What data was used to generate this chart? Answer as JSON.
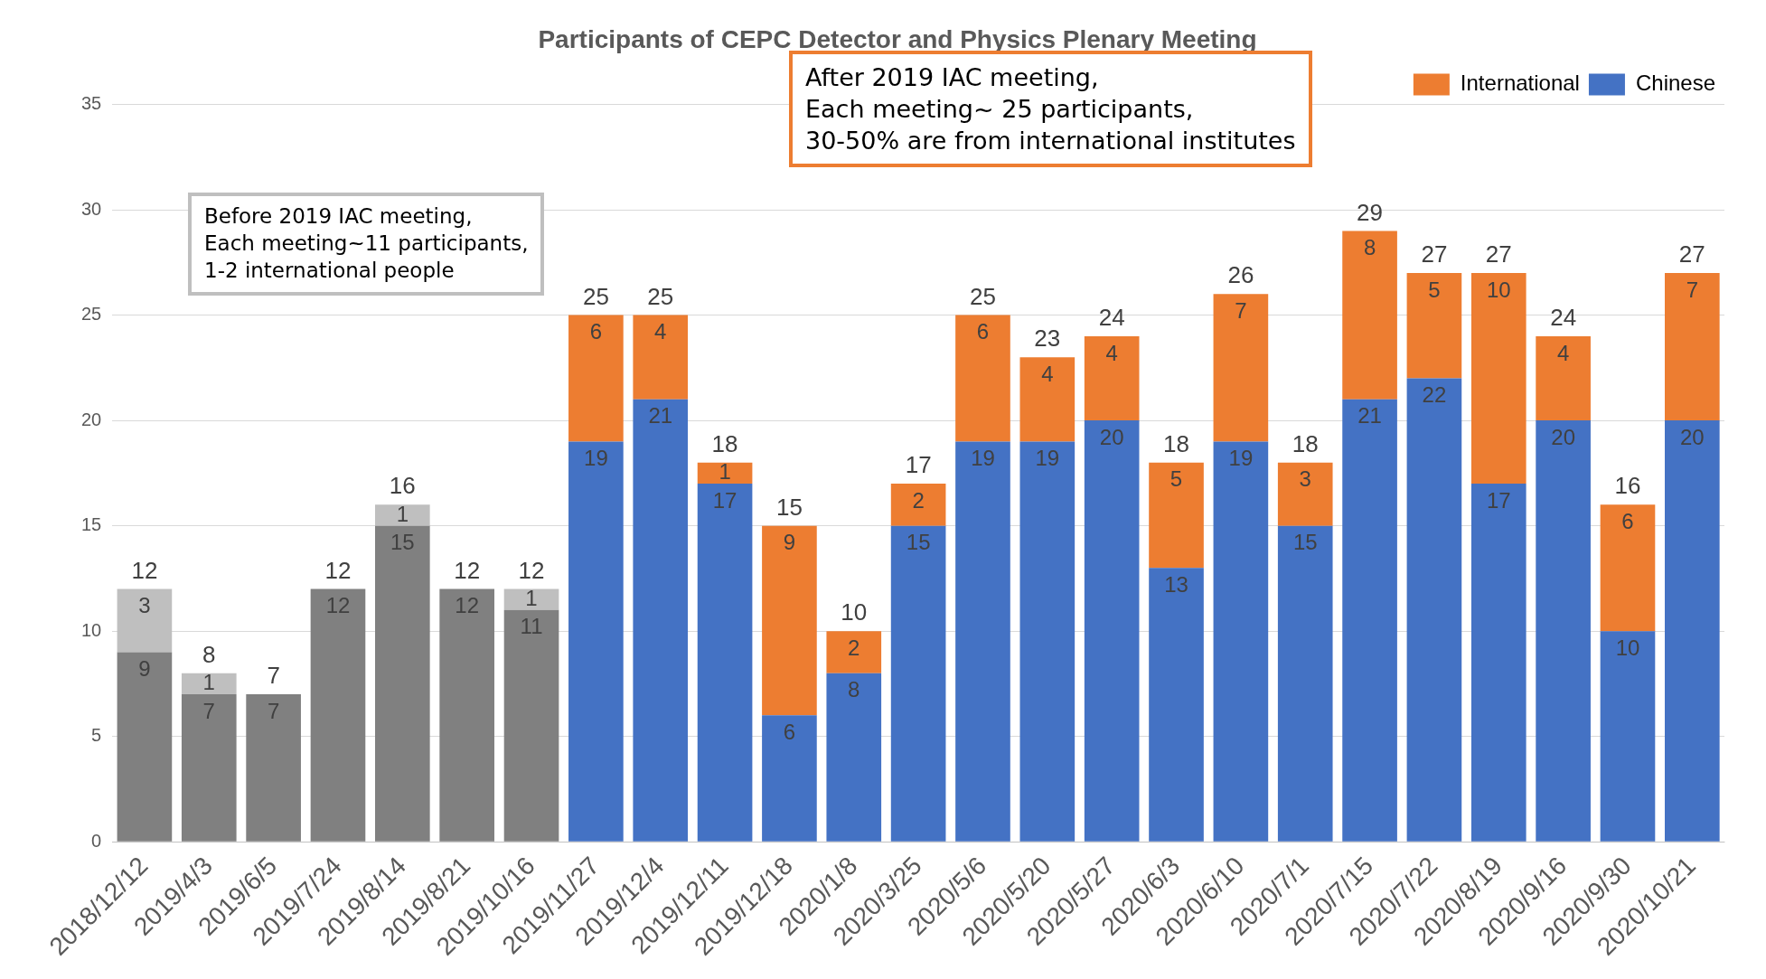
{
  "chart_data": {
    "type": "bar",
    "title": "Participants of CEPC Detector and Physics Plenary Meeting",
    "stacked": true,
    "categories": [
      "2018/12/12",
      "2019/4/3",
      "2019/6/5",
      "2019/7/24",
      "2019/8/14",
      "2019/8/21",
      "2019/10/16",
      "2019/11/27",
      "2019/12/4",
      "2019/12/11",
      "2019/12/18",
      "2020/1/8",
      "2020/3/25",
      "2020/5/6",
      "2020/5/20",
      "2020/5/27",
      "2020/6/3",
      "2020/6/10",
      "2020/7/1",
      "2020/7/15",
      "2020/7/22",
      "2020/8/19",
      "2020/9/16",
      "2020/9/30",
      "2020/10/21"
    ],
    "series": [
      {
        "name": "Chinese",
        "color": "#4472c4",
        "colors": [
          "#808080",
          "#808080",
          "#808080",
          "#808080",
          "#808080",
          "#808080",
          "#808080",
          "#4472c4",
          "#4472c4",
          "#4472c4",
          "#4472c4",
          "#4472c4",
          "#4472c4",
          "#4472c4",
          "#4472c4",
          "#4472c4",
          "#4472c4",
          "#4472c4",
          "#4472c4",
          "#4472c4",
          "#4472c4",
          "#4472c4",
          "#4472c4",
          "#4472c4",
          "#4472c4"
        ],
        "values": [
          9,
          7,
          7,
          12,
          15,
          12,
          11,
          19,
          21,
          17,
          6,
          8,
          15,
          19,
          19,
          20,
          13,
          19,
          15,
          21,
          22,
          17,
          20,
          10,
          20
        ]
      },
      {
        "name": "International",
        "color": "#ed7d31",
        "colors": [
          "#bfbfbf",
          "#bfbfbf",
          "#bfbfbf",
          "#bfbfbf",
          "#bfbfbf",
          "#bfbfbf",
          "#bfbfbf",
          "#ed7d31",
          "#ed7d31",
          "#ed7d31",
          "#ed7d31",
          "#ed7d31",
          "#ed7d31",
          "#ed7d31",
          "#ed7d31",
          "#ed7d31",
          "#ed7d31",
          "#ed7d31",
          "#ed7d31",
          "#ed7d31",
          "#ed7d31",
          "#ed7d31",
          "#ed7d31",
          "#ed7d31",
          "#ed7d31"
        ],
        "values": [
          3,
          1,
          null,
          null,
          1,
          null,
          1,
          6,
          4,
          1,
          9,
          2,
          2,
          6,
          4,
          4,
          5,
          7,
          3,
          8,
          5,
          10,
          4,
          6,
          7
        ]
      }
    ],
    "totals": [
      "12",
      "8",
      "7",
      "12",
      "16",
      "12",
      "12",
      "25",
      "25",
      "18",
      "15",
      "10",
      "17",
      "25",
      "23",
      "24",
      "18",
      "26",
      "18",
      "29",
      "27",
      "27",
      "24",
      "16",
      "27"
    ],
    "data_labels": true,
    "ylim": [
      0,
      35
    ],
    "yticks": [
      0,
      5,
      10,
      15,
      20,
      25,
      30,
      35
    ],
    "grid": "y",
    "legend": "top right",
    "annotations": [
      "Before 2019 IAC meeting,\nEach meeting~11 participants,\n1-2 international people",
      "After 2019 IAC meeting,\nEach meeting~ 25 participants,\n30-50% are from international institutes"
    ]
  }
}
